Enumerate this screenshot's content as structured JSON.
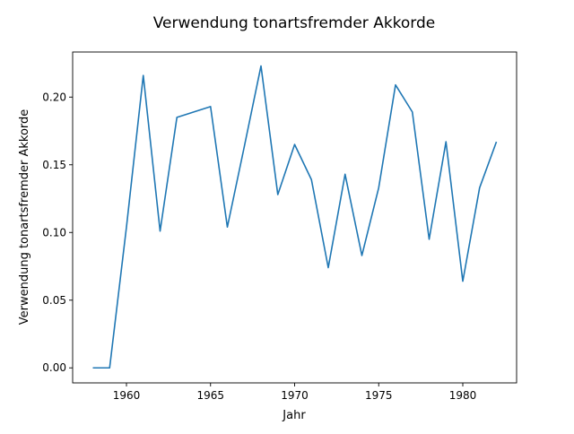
{
  "chart_data": {
    "type": "line",
    "title": "Verwendung tonartsfremder Akkorde",
    "xlabel": "Jahr",
    "ylabel": "Verwendung tonartsfremder Akkorde",
    "xlim": [
      1956.8,
      1983.2
    ],
    "ylim": [
      -0.0111,
      0.2333
    ],
    "xticks": [
      1960,
      1965,
      1970,
      1975,
      1980
    ],
    "yticks": [
      0.0,
      0.05,
      0.1,
      0.15,
      0.2
    ],
    "ytick_labels": [
      "0.00",
      "0.05",
      "0.10",
      "0.15",
      "0.20"
    ],
    "grid": false,
    "series": [
      {
        "color": "#1f77b4",
        "x": [
          1958,
          1959,
          1960,
          1961,
          1962,
          1963,
          1964,
          1965,
          1966,
          1967,
          1968,
          1969,
          1970,
          1971,
          1972,
          1973,
          1974,
          1975,
          1976,
          1977,
          1978,
          1979,
          1980,
          1981,
          1982
        ],
        "y": [
          0.0,
          0.0,
          0.104,
          0.216,
          0.101,
          0.185,
          0.189,
          0.193,
          0.104,
          0.163,
          0.223,
          0.128,
          0.165,
          0.139,
          0.074,
          0.143,
          0.083,
          0.133,
          0.209,
          0.189,
          0.095,
          0.167,
          0.064,
          0.133,
          0.167
        ]
      }
    ]
  }
}
